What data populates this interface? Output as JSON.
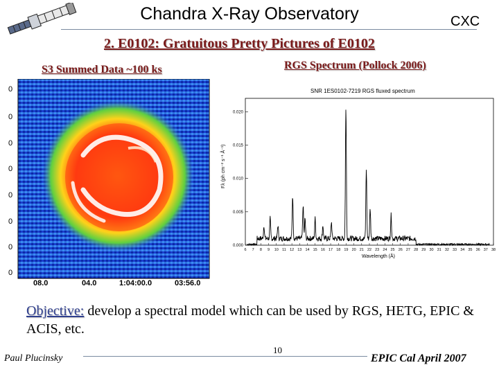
{
  "header": {
    "title": "Chandra X-Ray Observatory",
    "brand": "CXC",
    "logo_icon": "satellite-icon"
  },
  "slide": {
    "subtitle": "2. E0102: Gratuitous Pretty Pictures of E0102",
    "left_caption": "S3 Summed Data ~100 ks",
    "right_caption": "RGS Spectrum (Pollock 2006)"
  },
  "image_panel": {
    "y_tick_labels": [
      "0",
      "0",
      "0",
      "0",
      "0",
      "0",
      "0",
      "0"
    ],
    "x_tick_labels": [
      "08.0",
      "04.0",
      "1:04:00.0",
      "03:56.0"
    ]
  },
  "spectrum": {
    "title": "SNR 1ES0102-7219 RGS fluxed spectrum",
    "y_label": "Fλ (ph cm⁻² s⁻¹ Å⁻¹)",
    "x_label": "Wavelength (Å)",
    "y_ticks": [
      "0.020",
      "0.015",
      "0.010",
      "0.005",
      "0.000"
    ],
    "x_ticks": [
      "6",
      "7",
      "8",
      "9",
      "10",
      "11",
      "12",
      "13",
      "14",
      "15",
      "16",
      "17",
      "18",
      "19",
      "20",
      "21",
      "22",
      "23",
      "24",
      "25",
      "26",
      "27",
      "28",
      "29",
      "30",
      "31",
      "32",
      "33",
      "34",
      "35",
      "36",
      "37",
      "38"
    ],
    "peaks": [
      {
        "wavelength": 8.4,
        "flux": 0.002
      },
      {
        "wavelength": 9.2,
        "flux": 0.003
      },
      {
        "wavelength": 10.2,
        "flux": 0.002
      },
      {
        "wavelength": 12.1,
        "flux": 0.0065
      },
      {
        "wavelength": 13.45,
        "flux": 0.005
      },
      {
        "wavelength": 13.7,
        "flux": 0.003
      },
      {
        "wavelength": 15.0,
        "flux": 0.003
      },
      {
        "wavelength": 16.0,
        "flux": 0.002
      },
      {
        "wavelength": 17.1,
        "flux": 0.0025
      },
      {
        "wavelength": 18.97,
        "flux": 0.0198
      },
      {
        "wavelength": 21.6,
        "flux": 0.0105
      },
      {
        "wavelength": 22.1,
        "flux": 0.0045
      },
      {
        "wavelength": 24.8,
        "flux": 0.0035
      }
    ]
  },
  "objective": {
    "label": "Objective:",
    "text": " develop a spectral model which can be used by RGS, HETG, EPIC & ACIS, etc."
  },
  "footer": {
    "author": "Paul Plucinsky",
    "page_number": "10",
    "event": "EPIC Cal April 2007"
  }
}
